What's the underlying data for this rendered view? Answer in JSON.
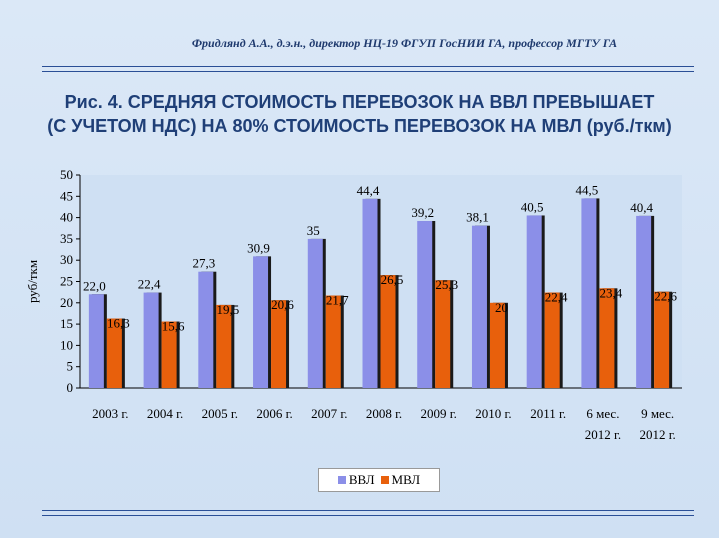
{
  "header": {
    "author": "Фридлянд А.А., д.э.н., директор  НЦ-19 ФГУП ГосНИИ ГА, профессор МГТУ ГА",
    "title_line1": "Рис. 4. СРЕДНЯЯ СТОИМОСТЬ ПЕРЕВОЗОК НА ВВЛ ПРЕВЫШАЕТ",
    "title_line2": "(С УЧЕТОМ НДС) НА 80% СТОИМОСТЬ ПЕРЕВОЗОК НА МВЛ (руб./ткм)"
  },
  "chart_data": {
    "type": "bar",
    "ylabel": "руб/ткм",
    "ylim": [
      0,
      50
    ],
    "yticks": [
      0,
      5,
      10,
      15,
      20,
      25,
      30,
      35,
      40,
      45,
      50
    ],
    "grid": false,
    "legend_position": "bottom",
    "categories": [
      [
        "2003 г."
      ],
      [
        "2004 г."
      ],
      [
        "2005 г."
      ],
      [
        "2006 г."
      ],
      [
        "2007 г."
      ],
      [
        "2008 г."
      ],
      [
        "2009 г."
      ],
      [
        "2010 г."
      ],
      [
        "2011 г."
      ],
      [
        "6 мес.",
        "2012 г."
      ],
      [
        "9 мес.",
        "2012 г."
      ]
    ],
    "series": [
      {
        "name": "ВВЛ",
        "color": "#8b8fe8",
        "values": [
          22.0,
          22.4,
          27.3,
          30.9,
          35,
          44.4,
          39.2,
          38.1,
          40.5,
          44.5,
          40.4
        ],
        "labels": [
          "22,0",
          "22,4",
          "27,3",
          "30,9",
          "35",
          "44,4",
          "39,2",
          "38,1",
          "40,5",
          "44,5",
          "40,4"
        ]
      },
      {
        "name": "МВЛ",
        "color": "#e8600c",
        "values": [
          16.3,
          15.6,
          19.5,
          20.6,
          21.7,
          26.5,
          25.3,
          20,
          22.4,
          23.4,
          22.6
        ],
        "labels": [
          "16,3",
          "15,6",
          "19,5",
          "20,6",
          "21,7",
          "26,5",
          "25,3",
          "20",
          "22,4",
          "23,4",
          "22,6"
        ]
      }
    ]
  }
}
